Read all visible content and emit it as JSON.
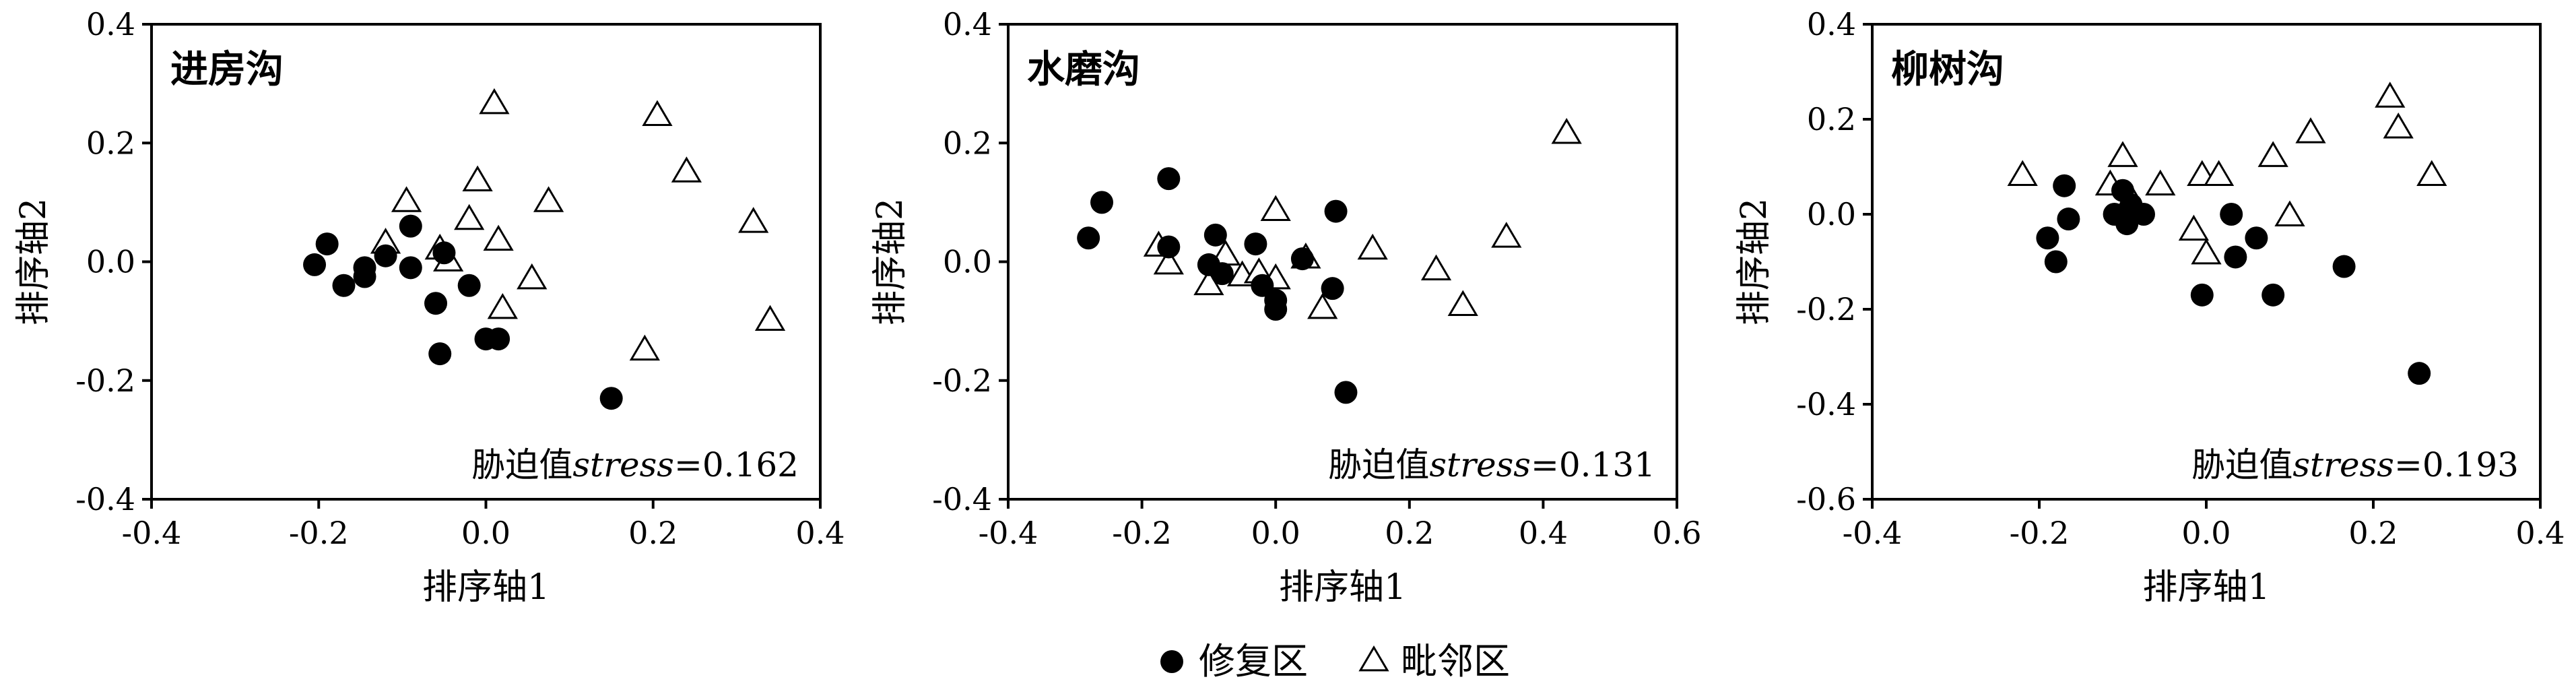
{
  "chart_data": [
    {
      "type": "scatter",
      "title": "进房沟",
      "stress_prefix": "胁迫值",
      "stress_word": "stress",
      "stress_value": "=0.162",
      "xlabel": "排序轴1",
      "ylabel": "排序轴2",
      "xlim": [
        -0.4,
        0.4
      ],
      "ylim": [
        -0.4,
        0.4
      ],
      "xticks": [
        -0.4,
        -0.2,
        0.0,
        0.2,
        0.4
      ],
      "xtick_labels": [
        "-0.4",
        "-0.2",
        "0.0",
        "0.2",
        "0.4"
      ],
      "yticks": [
        -0.4,
        -0.2,
        0.0,
        0.2,
        0.4
      ],
      "ytick_labels": [
        "-0.4",
        "-0.2",
        "0.0",
        "0.2",
        "0.4"
      ],
      "series": [
        {
          "name": "修复区",
          "marker": "circle",
          "points": [
            [
              -0.205,
              -0.005
            ],
            [
              -0.19,
              0.03
            ],
            [
              -0.17,
              -0.04
            ],
            [
              -0.145,
              -0.01
            ],
            [
              -0.145,
              -0.025
            ],
            [
              -0.12,
              0.01
            ],
            [
              -0.09,
              0.06
            ],
            [
              -0.09,
              -0.01
            ],
            [
              -0.06,
              -0.07
            ],
            [
              -0.055,
              -0.155
            ],
            [
              -0.05,
              0.015
            ],
            [
              -0.02,
              -0.04
            ],
            [
              0.0,
              -0.13
            ],
            [
              0.015,
              -0.13
            ],
            [
              0.15,
              -0.23
            ]
          ]
        },
        {
          "name": "毗邻区",
          "marker": "triangle",
          "points": [
            [
              -0.12,
              0.03
            ],
            [
              -0.095,
              0.1
            ],
            [
              -0.055,
              0.02
            ],
            [
              -0.045,
              0.0
            ],
            [
              -0.02,
              0.07
            ],
            [
              -0.01,
              0.135
            ],
            [
              0.01,
              0.265
            ],
            [
              0.015,
              0.035
            ],
            [
              0.02,
              -0.08
            ],
            [
              0.055,
              -0.03
            ],
            [
              0.075,
              0.1
            ],
            [
              0.19,
              -0.15
            ],
            [
              0.205,
              0.245
            ],
            [
              0.24,
              0.15
            ],
            [
              0.32,
              0.065
            ],
            [
              0.34,
              -0.1
            ]
          ]
        }
      ]
    },
    {
      "type": "scatter",
      "title": "水磨沟",
      "stress_prefix": "胁迫值",
      "stress_word": "stress",
      "stress_value": "=0.131",
      "xlabel": "排序轴1",
      "ylabel": "排序轴2",
      "xlim": [
        -0.4,
        0.6
      ],
      "ylim": [
        -0.4,
        0.4
      ],
      "xticks": [
        -0.4,
        -0.2,
        0.0,
        0.2,
        0.4,
        0.6
      ],
      "xtick_labels": [
        "-0.4",
        "-0.2",
        "0.0",
        "0.2",
        "0.4",
        "0.6"
      ],
      "yticks": [
        -0.4,
        -0.2,
        0.0,
        0.2,
        0.4
      ],
      "ytick_labels": [
        "-0.4",
        "-0.2",
        "0.0",
        "0.2",
        "0.4"
      ],
      "series": [
        {
          "name": "修复区",
          "marker": "circle",
          "points": [
            [
              -0.28,
              0.04
            ],
            [
              -0.26,
              0.1
            ],
            [
              -0.16,
              0.14
            ],
            [
              -0.16,
              0.025
            ],
            [
              -0.1,
              -0.005
            ],
            [
              -0.09,
              0.045
            ],
            [
              -0.08,
              -0.02
            ],
            [
              -0.03,
              0.03
            ],
            [
              -0.02,
              -0.04
            ],
            [
              0.0,
              -0.065
            ],
            [
              0.0,
              -0.08
            ],
            [
              0.04,
              0.005
            ],
            [
              0.085,
              -0.045
            ],
            [
              0.09,
              0.085
            ],
            [
              0.105,
              -0.22
            ]
          ]
        },
        {
          "name": "毗邻区",
          "marker": "triangle",
          "points": [
            [
              -0.175,
              0.025
            ],
            [
              -0.16,
              -0.005
            ],
            [
              -0.1,
              -0.04
            ],
            [
              -0.075,
              0.01
            ],
            [
              -0.05,
              -0.025
            ],
            [
              -0.025,
              -0.02
            ],
            [
              0.0,
              -0.03
            ],
            [
              0.0,
              0.085
            ],
            [
              0.045,
              0.005
            ],
            [
              0.07,
              -0.08
            ],
            [
              0.145,
              0.02
            ],
            [
              0.24,
              -0.015
            ],
            [
              0.28,
              -0.075
            ],
            [
              0.345,
              0.04
            ],
            [
              0.435,
              0.215
            ]
          ]
        }
      ]
    },
    {
      "type": "scatter",
      "title": "柳树沟",
      "stress_prefix": "胁迫值",
      "stress_word": "stress",
      "stress_value": "=0.193",
      "xlabel": "排序轴1",
      "ylabel": "排序轴2",
      "xlim": [
        -0.4,
        0.4
      ],
      "ylim": [
        -0.6,
        0.4
      ],
      "xticks": [
        -0.4,
        -0.2,
        0.0,
        0.2,
        0.4
      ],
      "xtick_labels": [
        "-0.4",
        "-0.2",
        "0.0",
        "0.2",
        "0.4"
      ],
      "yticks": [
        -0.6,
        -0.4,
        -0.2,
        0.0,
        0.2,
        0.4
      ],
      "ytick_labels": [
        "-0.6",
        "-0.4",
        "-0.2",
        "0.0",
        "0.2",
        "0.4"
      ],
      "series": [
        {
          "name": "修复区",
          "marker": "circle",
          "points": [
            [
              -0.19,
              -0.05
            ],
            [
              -0.18,
              -0.1
            ],
            [
              -0.17,
              0.06
            ],
            [
              -0.165,
              -0.01
            ],
            [
              -0.11,
              0.0
            ],
            [
              -0.1,
              0.05
            ],
            [
              -0.095,
              -0.02
            ],
            [
              -0.09,
              0.02
            ],
            [
              -0.075,
              0.0
            ],
            [
              -0.005,
              -0.17
            ],
            [
              0.03,
              0.0
            ],
            [
              0.035,
              -0.09
            ],
            [
              0.06,
              -0.05
            ],
            [
              0.08,
              -0.17
            ],
            [
              0.165,
              -0.11
            ],
            [
              0.255,
              -0.335
            ]
          ]
        },
        {
          "name": "毗邻区",
          "marker": "triangle",
          "points": [
            [
              -0.22,
              0.08
            ],
            [
              -0.115,
              0.06
            ],
            [
              -0.1,
              0.12
            ],
            [
              -0.09,
              0.03
            ],
            [
              -0.055,
              0.06
            ],
            [
              -0.015,
              -0.035
            ],
            [
              -0.005,
              0.08
            ],
            [
              0.0,
              -0.085
            ],
            [
              0.015,
              0.08
            ],
            [
              0.08,
              0.12
            ],
            [
              0.1,
              -0.005
            ],
            [
              0.125,
              0.17
            ],
            [
              0.22,
              0.245
            ],
            [
              0.23,
              0.18
            ],
            [
              0.27,
              0.08
            ]
          ]
        }
      ]
    }
  ],
  "legend": {
    "items": [
      {
        "marker": "circle",
        "label": "修复区"
      },
      {
        "marker": "triangle",
        "label": "毗邻区"
      }
    ]
  }
}
